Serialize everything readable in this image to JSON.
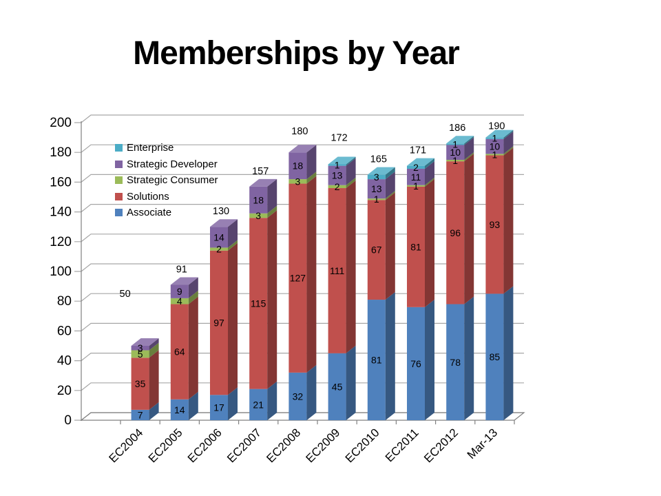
{
  "slide": {
    "title": "Memberships by Year"
  },
  "chart_data": {
    "type": "bar",
    "variant": "3d-stacked-column",
    "title": "Memberships by Year",
    "categories": [
      "EC2004",
      "EC2005",
      "EC2006",
      "EC2007",
      "EC2008",
      "EC2009",
      "EC2010",
      "EC2011",
      "EC2012",
      "Mar-13"
    ],
    "series": [
      {
        "name": "Associate",
        "color": "#4F81BD",
        "values": [
          7,
          14,
          17,
          21,
          32,
          45,
          81,
          76,
          78,
          85
        ]
      },
      {
        "name": "Solutions",
        "color": "#C0504D",
        "values": [
          35,
          64,
          97,
          115,
          127,
          111,
          67,
          81,
          96,
          93
        ]
      },
      {
        "name": "Strategic Consumer",
        "color": "#9BBB59",
        "values": [
          5,
          4,
          2,
          3,
          3,
          2,
          1,
          1,
          1,
          1
        ]
      },
      {
        "name": "Strategic Developer",
        "color": "#8064A2",
        "values": [
          3,
          9,
          14,
          18,
          18,
          13,
          13,
          11,
          10,
          10
        ]
      },
      {
        "name": "Enterprise",
        "color": "#4BACC6",
        "values": [
          0,
          0,
          0,
          0,
          0,
          1,
          3,
          2,
          1,
          1
        ]
      }
    ],
    "totals": [
      50,
      91,
      130,
      157,
      180,
      172,
      165,
      171,
      186,
      190
    ],
    "xlabel": "",
    "ylabel": "",
    "ylim": [
      0,
      200
    ],
    "y_ticks": [
      0,
      20,
      40,
      60,
      80,
      100,
      120,
      140,
      160,
      180,
      200
    ],
    "grid": true,
    "legend": {
      "position": "inside-top-left",
      "entries": [
        "Enterprise",
        "Strategic Developer",
        "Strategic Consumer",
        "Solutions",
        "Associate"
      ]
    },
    "colors": {
      "grid": "#A6A6A6",
      "axis": "#808080",
      "label_text": "#000000"
    },
    "layout": {
      "total_label_offsets": {
        "0": [
          -25,
          -53
        ],
        "4": [
          0,
          -8
        ],
        "5": [
          0,
          -16
        ],
        "9": [
          0,
          6
        ]
      }
    }
  }
}
